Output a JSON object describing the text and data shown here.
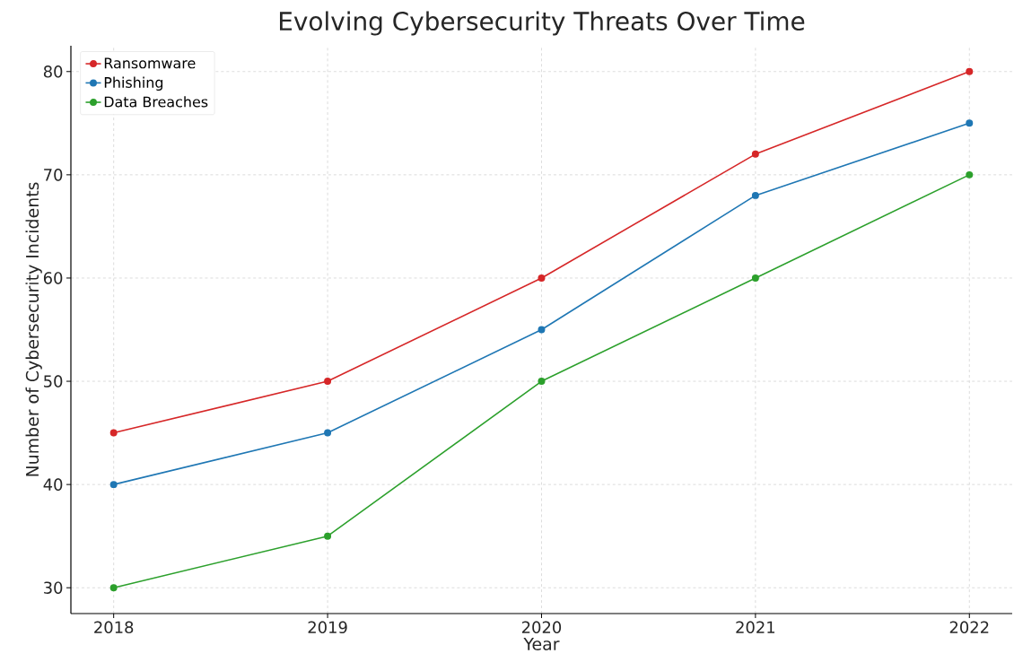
{
  "chart_data": {
    "type": "line",
    "title": "Evolving Cybersecurity Threats Over Time",
    "xlabel": "Year",
    "ylabel": "Number of Cybersecurity Incidents",
    "x": [
      2018,
      2019,
      2020,
      2021,
      2022
    ],
    "series": [
      {
        "name": "Ransomware",
        "color": "#d62728",
        "values": [
          45,
          50,
          60,
          72,
          80
        ]
      },
      {
        "name": "Phishing",
        "color": "#1f77b4",
        "values": [
          40,
          45,
          55,
          68,
          75
        ]
      },
      {
        "name": "Data Breaches",
        "color": "#2ca02c",
        "values": [
          30,
          35,
          50,
          60,
          70
        ]
      }
    ],
    "xlim": [
      2017.8,
      2022.2
    ],
    "ylim": [
      27.5,
      82.5
    ],
    "xticks": [
      2018,
      2019,
      2020,
      2021,
      2022
    ],
    "yticks": [
      30,
      40,
      50,
      60,
      70,
      80
    ],
    "grid": true,
    "legend": "top left",
    "marker": "circle",
    "line_style": "solid"
  }
}
